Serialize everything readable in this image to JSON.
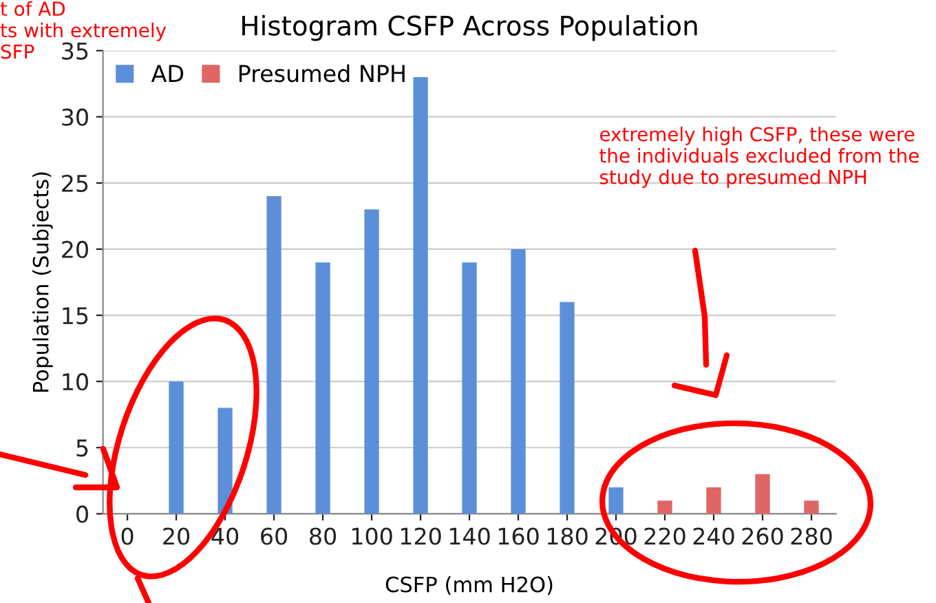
{
  "chart_data": {
    "type": "bar",
    "title": "Histogram CSFP Across Population",
    "xlabel": "CSFP (mm H2O)",
    "ylabel": "Population (Subjects)",
    "categories": [
      "0",
      "20",
      "40",
      "60",
      "80",
      "100",
      "120",
      "140",
      "160",
      "180",
      "200",
      "220",
      "240",
      "260",
      "280"
    ],
    "series": [
      {
        "name": "AD",
        "color": "#5b8fd9",
        "values": [
          0,
          10,
          8,
          24,
          19,
          23,
          33,
          19,
          20,
          16,
          2,
          null,
          null,
          null,
          null
        ]
      },
      {
        "name": "Presumed NPH",
        "color": "#e06666",
        "values": [
          null,
          null,
          null,
          null,
          null,
          null,
          null,
          null,
          null,
          null,
          null,
          1,
          2,
          3,
          1
        ]
      }
    ],
    "ylim": [
      0,
      35
    ],
    "yticks": [
      0,
      5,
      10,
      15,
      20,
      25,
      30,
      35
    ],
    "grid": "y",
    "legend": "top left",
    "annotations": [
      "t of AD\nts with extremely\nSFP",
      "extremely high CSFP, these were\nthe individuals excluded from the\nstudy due to presumed NPH"
    ]
  }
}
